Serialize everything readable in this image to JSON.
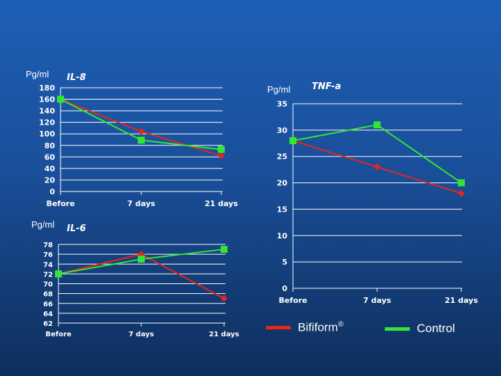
{
  "units": {
    "il8": "Pg/ml",
    "il6": "Pg/ml",
    "tnf": "Pg/ml"
  },
  "legend": {
    "bifiform_label": "Bifiform",
    "bifiform_mark": "®",
    "control_label": "Control"
  },
  "colors": {
    "bifiform": "#e8251c",
    "control": "#33e633",
    "grid": "#ffffff",
    "text": "#ffffff"
  },
  "chart_data": [
    {
      "id": "il8",
      "type": "line",
      "title": "IL-8",
      "ylabel": "Pg/ml",
      "categories": [
        "Before",
        "7 days",
        "21 days"
      ],
      "ylim": [
        0,
        180
      ],
      "yticks": [
        0,
        20,
        40,
        60,
        80,
        100,
        120,
        140,
        160,
        180
      ],
      "series": [
        {
          "name": "Bifiform",
          "values": [
            160,
            104,
            62
          ]
        },
        {
          "name": "Control",
          "values": [
            160,
            89,
            73
          ]
        }
      ]
    },
    {
      "id": "il6",
      "type": "line",
      "title": "IL-6",
      "ylabel": "Pg/ml",
      "categories": [
        "Before",
        "7 days",
        "21 days"
      ],
      "ylim": [
        62,
        78
      ],
      "yticks": [
        62,
        64,
        66,
        68,
        70,
        72,
        74,
        76,
        78
      ],
      "series": [
        {
          "name": "Bifiform",
          "values": [
            72,
            76,
            67
          ]
        },
        {
          "name": "Control",
          "values": [
            72,
            75,
            77
          ]
        }
      ]
    },
    {
      "id": "tnf",
      "type": "line",
      "title": "TNF-a",
      "ylabel": "Pg/ml",
      "categories": [
        "Before",
        "7 days",
        "21 days"
      ],
      "ylim": [
        0,
        35
      ],
      "yticks": [
        0,
        5,
        10,
        15,
        20,
        25,
        30,
        35
      ],
      "series": [
        {
          "name": "Bifiform",
          "values": [
            28,
            23,
            18
          ]
        },
        {
          "name": "Control",
          "values": [
            28,
            31,
            20
          ]
        }
      ]
    }
  ]
}
